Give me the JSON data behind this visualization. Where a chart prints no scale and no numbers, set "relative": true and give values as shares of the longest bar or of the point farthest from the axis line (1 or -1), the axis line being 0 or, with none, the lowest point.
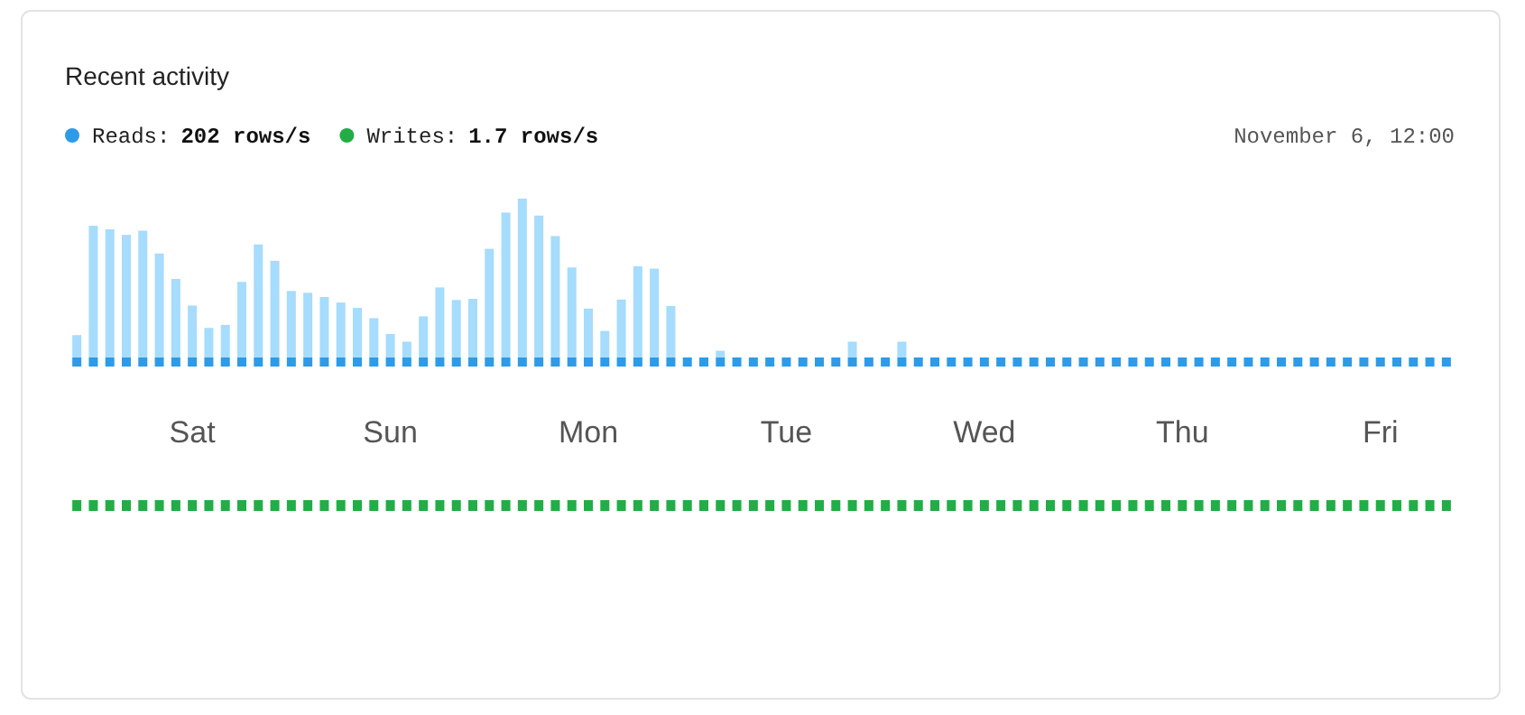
{
  "chart_data": [
    {
      "type": "bar",
      "title": "Recent activity",
      "relative": true,
      "stacked": true,
      "legend": "top left",
      "annotations": [
        "202 rows/s",
        "November 6, 12:00"
      ],
      "categories": [
        null,
        null,
        null,
        null,
        null,
        null,
        null,
        "Sat",
        null,
        null,
        null,
        null,
        null,
        null,
        null,
        null,
        null,
        null,
        null,
        "Sun",
        null,
        null,
        null,
        null,
        null,
        null,
        null,
        null,
        null,
        null,
        null,
        "Mon",
        null,
        null,
        null,
        null,
        null,
        null,
        null,
        null,
        null,
        null,
        null,
        "Tue",
        null,
        null,
        null,
        null,
        null,
        null,
        null,
        null,
        null,
        null,
        null,
        "Wed",
        null,
        null,
        null,
        null,
        null,
        null,
        null,
        null,
        null,
        null,
        null,
        "Thu",
        null,
        null,
        null,
        null,
        null,
        null,
        null,
        null,
        null,
        null,
        null,
        "Fri",
        null,
        null,
        null,
        null
      ],
      "series": [
        {
          "name": "Reads:",
          "color": "#2d9be8",
          "values": [
            0.054,
            0.054,
            0.054,
            0.054,
            0.054,
            0.054,
            0.054,
            0.054,
            0.054,
            0.054,
            0.054,
            0.054,
            0.054,
            0.054,
            0.054,
            0.054,
            0.054,
            0.054,
            0.054,
            0.054,
            0.054,
            0.054,
            0.054,
            0.054,
            0.054,
            0.054,
            0.054,
            0.054,
            0.054,
            0.054,
            0.054,
            0.054,
            0.054,
            0.054,
            0.054,
            0.054,
            0.054,
            0.054,
            0.054,
            0.054,
            0.054,
            0.054,
            0.054,
            0.054,
            0.054,
            0.054,
            0.054,
            0.054,
            0.054,
            0.054,
            0.054,
            0.054,
            0.054,
            0.054,
            0.054,
            0.054,
            0.054,
            0.054,
            0.054,
            0.054,
            0.054,
            0.054,
            0.054,
            0.054,
            0.054,
            0.054,
            0.054,
            0.054,
            0.054,
            0.054,
            0.054,
            0.054,
            0.054,
            0.054,
            0.054,
            0.054,
            0.054,
            0.054,
            0.054,
            0.054,
            0.054,
            0.054,
            0.054,
            0.054
          ]
        },
        {
          "color": "#a6dcfd",
          "values": [
            0.133,
            0.784,
            0.763,
            0.73,
            0.755,
            0.619,
            0.468,
            0.309,
            0.176,
            0.194,
            0.45,
            0.673,
            0.576,
            0.396,
            0.385,
            0.36,
            0.327,
            0.295,
            0.234,
            0.14,
            0.094,
            0.245,
            0.417,
            0.342,
            0.349,
            0.647,
            0.863,
            0.946,
            0.845,
            0.723,
            0.536,
            0.291,
            0.158,
            0.345,
            0.543,
            0.529,
            0.306,
            0,
            0,
            0.04,
            0,
            0,
            0,
            0,
            0,
            0,
            0,
            0.094,
            0,
            0,
            0.094,
            0,
            0,
            0,
            0,
            0,
            0,
            0,
            0,
            0,
            0,
            0,
            0,
            0,
            0,
            0,
            0,
            0,
            0,
            0,
            0,
            0,
            0,
            0,
            0,
            0,
            0,
            0,
            0,
            0,
            0,
            0,
            0,
            0
          ]
        }
      ]
    },
    {
      "type": "bar",
      "relative": true,
      "legend": "top left",
      "annotations": [
        "1.7 rows/s"
      ],
      "categories": [
        null,
        null,
        null,
        null,
        null,
        null,
        null,
        null,
        null,
        null,
        null,
        null,
        null,
        null,
        null,
        null,
        null,
        null,
        null,
        null,
        null,
        null,
        null,
        null,
        null,
        null,
        null,
        null,
        null,
        null,
        null,
        null,
        null,
        null,
        null,
        null,
        null,
        null,
        null,
        null,
        null,
        null,
        null,
        null,
        null,
        null,
        null,
        null,
        null,
        null,
        null,
        null,
        null,
        null,
        null,
        null,
        null,
        null,
        null,
        null,
        null,
        null,
        null,
        null,
        null,
        null,
        null,
        null,
        null,
        null,
        null,
        null,
        null,
        null,
        null,
        null,
        null,
        null,
        null,
        null,
        null,
        null,
        null,
        null
      ],
      "series": [
        {
          "name": "Writes:",
          "color": "#22ad46",
          "values": [
            1,
            1,
            1,
            1,
            1,
            1,
            1,
            1,
            1,
            1,
            1,
            1,
            1,
            1,
            1,
            1,
            1,
            1,
            1,
            1,
            1,
            1,
            1,
            1,
            1,
            1,
            1,
            1,
            1,
            1,
            1,
            1,
            1,
            1,
            1,
            1,
            1,
            1,
            1,
            1,
            1,
            1,
            1,
            1,
            1,
            1,
            1,
            1,
            1,
            1,
            1,
            1,
            1,
            1,
            1,
            1,
            1,
            1,
            1,
            1,
            1,
            1,
            1,
            1,
            1,
            1,
            1,
            1,
            1,
            1,
            1,
            1,
            1,
            1,
            1,
            1,
            1,
            1,
            1,
            1,
            1,
            1,
            1,
            1
          ]
        }
      ]
    }
  ]
}
